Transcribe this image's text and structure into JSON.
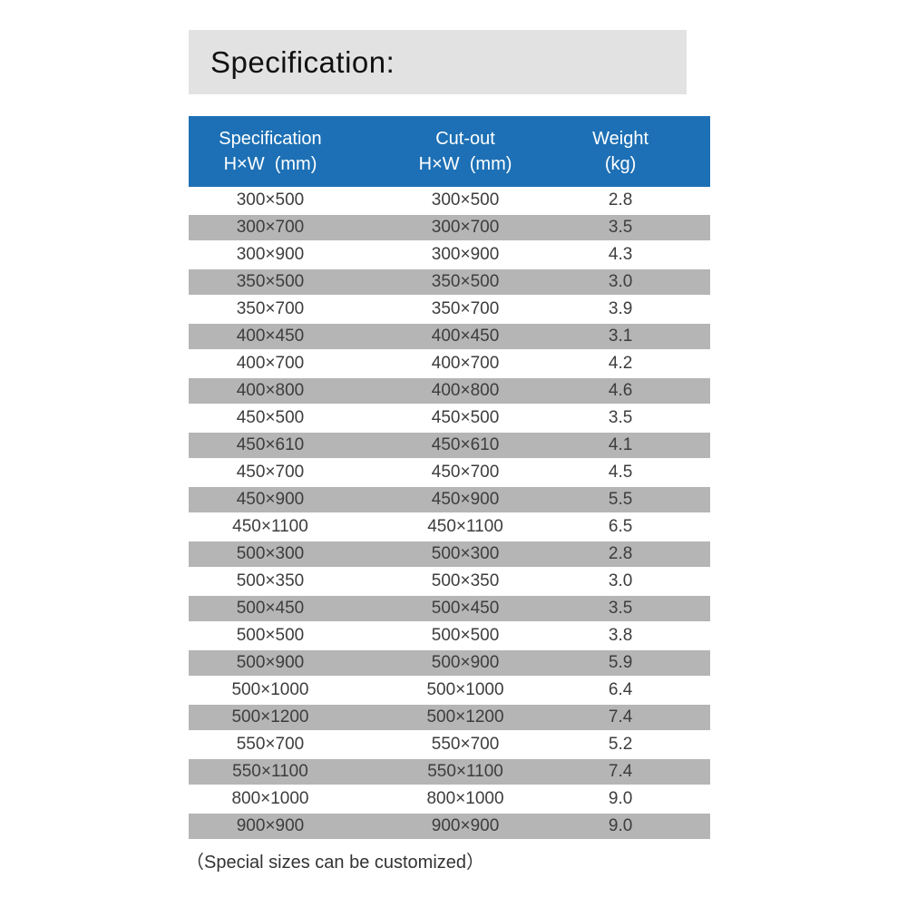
{
  "page": {
    "title": "Specification:",
    "footnote": "（Special sizes can be customized）"
  },
  "colors": {
    "accent_blue": "#1d70b5",
    "row_gray": "#b5b5b5",
    "title_bar_gray": "#e2e2e2"
  },
  "table": {
    "columns": [
      {
        "title": "Specification",
        "unit": "H×W  (mm)"
      },
      {
        "title": "Cut-out",
        "unit": "H×W  (mm)"
      },
      {
        "title": "Weight",
        "unit": "(kg)"
      }
    ],
    "rows": [
      {
        "spec": "300×500",
        "cutout": "300×500",
        "weight": "2.8"
      },
      {
        "spec": "300×700",
        "cutout": "300×700",
        "weight": "3.5"
      },
      {
        "spec": "300×900",
        "cutout": "300×900",
        "weight": "4.3"
      },
      {
        "spec": "350×500",
        "cutout": "350×500",
        "weight": "3.0"
      },
      {
        "spec": "350×700",
        "cutout": "350×700",
        "weight": "3.9"
      },
      {
        "spec": "400×450",
        "cutout": "400×450",
        "weight": "3.1"
      },
      {
        "spec": "400×700",
        "cutout": "400×700",
        "weight": "4.2"
      },
      {
        "spec": "400×800",
        "cutout": "400×800",
        "weight": "4.6"
      },
      {
        "spec": "450×500",
        "cutout": "450×500",
        "weight": "3.5"
      },
      {
        "spec": "450×610",
        "cutout": "450×610",
        "weight": "4.1"
      },
      {
        "spec": "450×700",
        "cutout": "450×700",
        "weight": "4.5"
      },
      {
        "spec": "450×900",
        "cutout": "450×900",
        "weight": "5.5"
      },
      {
        "spec": "450×1100",
        "cutout": "450×1100",
        "weight": "6.5"
      },
      {
        "spec": "500×300",
        "cutout": "500×300",
        "weight": "2.8"
      },
      {
        "spec": "500×350",
        "cutout": "500×350",
        "weight": "3.0"
      },
      {
        "spec": "500×450",
        "cutout": "500×450",
        "weight": "3.5"
      },
      {
        "spec": "500×500",
        "cutout": "500×500",
        "weight": "3.8"
      },
      {
        "spec": "500×900",
        "cutout": "500×900",
        "weight": "5.9"
      },
      {
        "spec": "500×1000",
        "cutout": "500×1000",
        "weight": "6.4"
      },
      {
        "spec": "500×1200",
        "cutout": "500×1200",
        "weight": "7.4"
      },
      {
        "spec": "550×700",
        "cutout": "550×700",
        "weight": "5.2"
      },
      {
        "spec": "550×1100",
        "cutout": "550×1100",
        "weight": "7.4"
      },
      {
        "spec": "800×1000",
        "cutout": "800×1000",
        "weight": "9.0"
      },
      {
        "spec": "900×900",
        "cutout": "900×900",
        "weight": "9.0"
      }
    ]
  }
}
